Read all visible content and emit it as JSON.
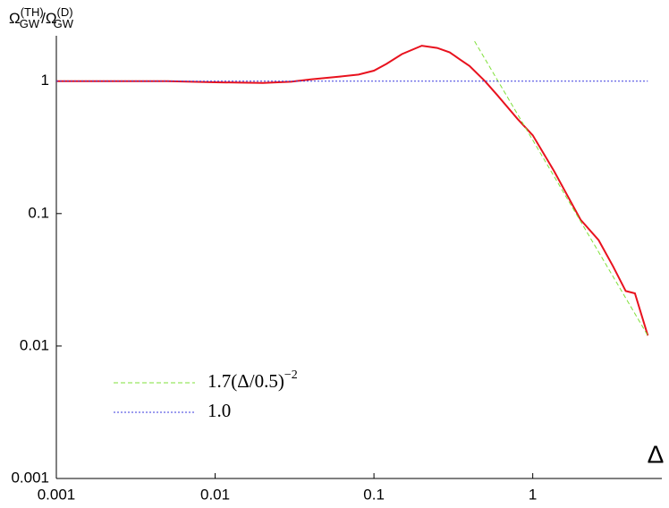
{
  "chart_data": {
    "type": "line",
    "ylabel": [
      "Ω",
      "(TH)",
      "GW",
      "/Ω",
      "(D)",
      "GW"
    ],
    "xlabel": "Δ",
    "xscale": "log",
    "yscale": "log",
    "xlim": [
      0.001,
      6.5
    ],
    "ylim": [
      0.001,
      2.2
    ],
    "xticks": [
      0.001,
      0.01,
      0.1,
      1
    ],
    "yticks": [
      0.001,
      0.01,
      0.1,
      1
    ],
    "grid": false,
    "legend": "lower left",
    "series": [
      {
        "color": "#e8121e",
        "style": "solid",
        "x": [
          0.001,
          0.005,
          0.01,
          0.02,
          0.03,
          0.04,
          0.06,
          0.08,
          0.1,
          0.12,
          0.15,
          0.2,
          0.25,
          0.3,
          0.35,
          0.4,
          0.5,
          0.6,
          0.8,
          1.0,
          1.36,
          2.0,
          2.6,
          3.2,
          3.85,
          4.4,
          5.3
        ],
        "values": [
          1.0,
          1.0,
          0.98,
          0.97,
          0.99,
          1.03,
          1.08,
          1.12,
          1.2,
          1.35,
          1.6,
          1.85,
          1.78,
          1.65,
          1.45,
          1.3,
          1.0,
          0.78,
          0.52,
          0.39,
          0.21,
          0.09,
          0.063,
          0.04,
          0.026,
          0.025,
          0.012
        ]
      },
      {
        "name": [
          "1.7(Δ/0.5)",
          "−2"
        ],
        "color": "#7fe03a",
        "style": "dashed",
        "x": [
          0.43,
          5.3
        ],
        "values": [
          2.0,
          0.012
        ]
      },
      {
        "name": [
          "1.0"
        ],
        "color": "#3a3adf",
        "style": "dotted",
        "x": [
          0.001,
          5.3
        ],
        "values": [
          1.0,
          1.0
        ]
      }
    ]
  }
}
